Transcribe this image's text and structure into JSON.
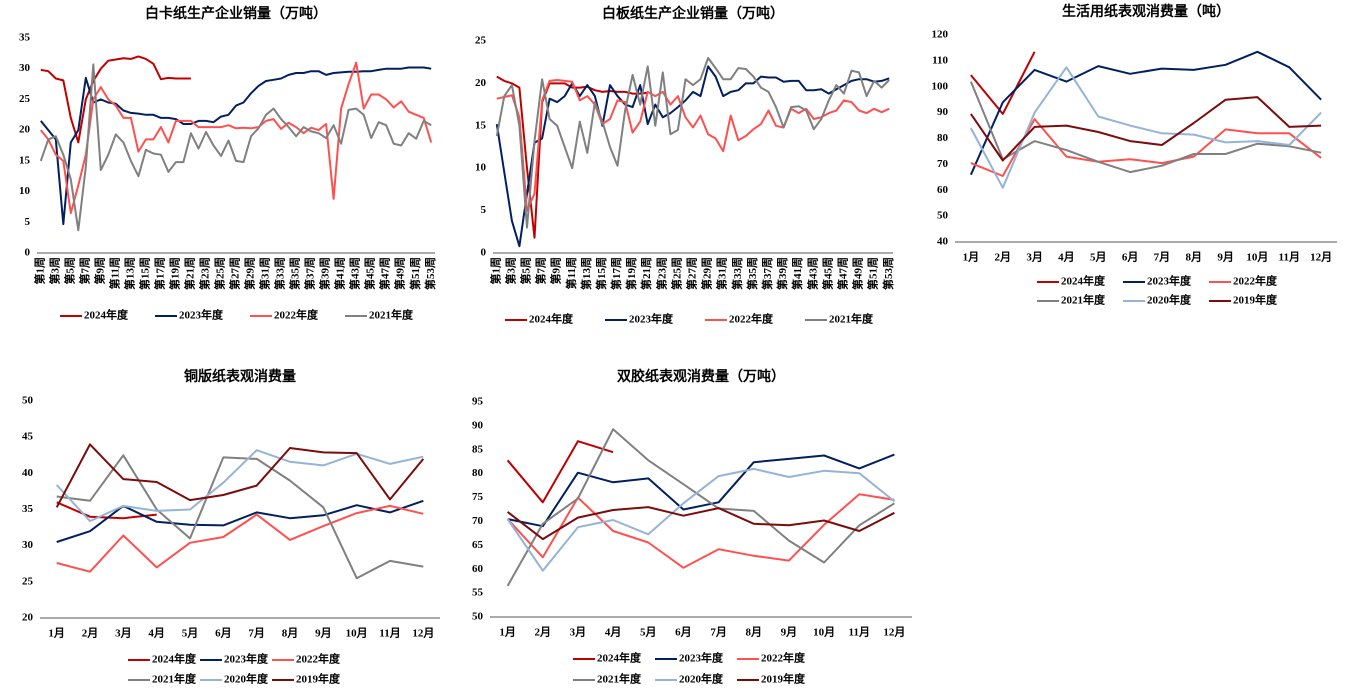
{
  "chart_data": [
    {
      "type": "line",
      "title": "白卡纸生产企业销量（万吨）",
      "categories": [
        "第1周",
        null,
        "第3周",
        null,
        "第5周",
        null,
        "第7周",
        null,
        "第9周",
        null,
        "第11周",
        null,
        "第13周",
        null,
        "第15周",
        null,
        "第17周",
        null,
        "第19周",
        null,
        "第21周",
        null,
        "第23周",
        null,
        "第25周",
        null,
        "第27周",
        null,
        "第29周",
        null,
        "第31周",
        null,
        "第33周",
        null,
        "第35周",
        null,
        "第37周",
        null,
        "第39周",
        null,
        "第41周",
        null,
        "第43周",
        null,
        "第45周",
        null,
        "第47周",
        null,
        "第49周",
        null,
        "第51周",
        null,
        "第53周"
      ],
      "ylim": [
        0,
        35
      ],
      "yticks": [
        0,
        5,
        10,
        15,
        20,
        25,
        30,
        35
      ],
      "series": [
        {
          "name": "2024年度",
          "color": "#c00000",
          "values": [
            29.8,
            29.6,
            28.4,
            28.1,
            22,
            18,
            25,
            28,
            30,
            31.3,
            31.5,
            31.7,
            31.6,
            32,
            31.6,
            30.8,
            28.3,
            28.5,
            28.4,
            28.4,
            28.4,
            null,
            null,
            null,
            null,
            null,
            null,
            null,
            null,
            null,
            null,
            null,
            null,
            null,
            null,
            null,
            null,
            null,
            null,
            null,
            null,
            null,
            null,
            null,
            null,
            null,
            null,
            null,
            null,
            null,
            null,
            null,
            null
          ]
        },
        {
          "name": "2023年度",
          "color": "#002060",
          "values": [
            21.5,
            20,
            18.5,
            4.7,
            18,
            20,
            28.5,
            24.5,
            25,
            24.5,
            24.3,
            23.2,
            22.8,
            22.7,
            22.5,
            22.5,
            22,
            22,
            21.8,
            21,
            21,
            21.5,
            21.5,
            21.3,
            22.2,
            22.5,
            24,
            24.5,
            26,
            27.2,
            28,
            28.2,
            28.4,
            29,
            29.3,
            29.3,
            29.6,
            29.6,
            29,
            29.3,
            29.4,
            29.5,
            29.5,
            29.6,
            29.6,
            29.8,
            30,
            30,
            30,
            30.2,
            30.2,
            30.2,
            30
          ]
        },
        {
          "name": "2022年度",
          "color": "#ff5050",
          "values": [
            20,
            18.5,
            16,
            15,
            6.5,
            11,
            16,
            25,
            27,
            25,
            24,
            22,
            22,
            16.5,
            18.5,
            18.5,
            20.5,
            18,
            21.5,
            21.5,
            21.5,
            20.5,
            20.5,
            20.5,
            20.5,
            20.8,
            20.3,
            20.4,
            20.3,
            20.5,
            21.5,
            21.8,
            20.2,
            21.2,
            20.5,
            19.5,
            20.4,
            20,
            21,
            8.8,
            23.5,
            27.5,
            31,
            23.5,
            25.8,
            25.8,
            25,
            23.7,
            24.7,
            23,
            22.5,
            22,
            18
          ]
        },
        {
          "name": "2021年度",
          "color": "#808080",
          "values": [
            15,
            18.5,
            19,
            16,
            12,
            3.7,
            14,
            30.7,
            13.5,
            16,
            19.3,
            18,
            15,
            12.5,
            16.8,
            16.2,
            16,
            13.2,
            14.8,
            14.8,
            19.5,
            17,
            19.7,
            17.5,
            15.8,
            18.3,
            15,
            14.8,
            19,
            20.3,
            22.5,
            23.5,
            21.8,
            20.5,
            19,
            20.5,
            19.8,
            19.5,
            18.7,
            20.8,
            17.8,
            23.3,
            23.5,
            22.5,
            18.7,
            21.3,
            20.8,
            17.8,
            17.5,
            19.5,
            18.6,
            21.5,
            20.8
          ]
        }
      ]
    },
    {
      "type": "line",
      "title": "白板纸生产企业销量（万吨）",
      "categories": [
        "第1周",
        null,
        "第3周",
        null,
        "第5周",
        null,
        "第7周",
        null,
        "第9周",
        null,
        "第11周",
        null,
        "第13周",
        null,
        "第15周",
        null,
        "第17周",
        null,
        "第19周",
        null,
        "第21周",
        null,
        "第23周",
        null,
        "第25周",
        null,
        "第27周",
        null,
        "第29周",
        null,
        "第31周",
        null,
        "第33周",
        null,
        "第35周",
        null,
        "第37周",
        null,
        "第39周",
        null,
        "第41周",
        null,
        "第43周",
        null,
        "第45周",
        null,
        "第47周",
        null,
        "第49周",
        null,
        "第51周",
        null,
        "第53周"
      ],
      "ylim": [
        0,
        25
      ],
      "yticks": [
        0,
        5,
        10,
        15,
        20,
        25
      ],
      "series": [
        {
          "name": "2024年度",
          "color": "#c00000",
          "values": [
            20.8,
            20.3,
            20,
            19.5,
            10,
            1.8,
            17.8,
            20,
            20,
            20,
            19.5,
            19.5,
            19.6,
            19.2,
            19,
            19.1,
            19,
            19,
            18.8,
            18.8,
            18.9,
            null,
            null,
            null,
            null,
            null,
            null,
            null,
            null,
            null,
            null,
            null,
            null,
            null,
            null,
            null,
            null,
            null,
            null,
            null,
            null,
            null,
            null,
            null,
            null,
            null,
            null,
            null,
            null,
            null,
            null,
            null,
            null
          ]
        },
        {
          "name": "2023年度",
          "color": "#002060",
          "values": [
            15.2,
            9.5,
            3.8,
            0.8,
            7,
            13,
            13.5,
            18.2,
            17.8,
            18.5,
            20,
            18.5,
            19.8,
            18.5,
            15,
            19.8,
            18.5,
            17.5,
            17.2,
            19.8,
            15.2,
            17.5,
            16,
            16.5,
            17.2,
            18,
            19,
            18.5,
            22,
            20.8,
            18.5,
            19,
            19.2,
            20,
            20,
            20.8,
            20.7,
            20.7,
            20.2,
            20.3,
            20.3,
            19.2,
            19.2,
            19.3,
            18.8,
            19.3,
            19.8,
            20.3,
            20.5,
            20.5,
            20.2,
            20.3,
            20.6
          ]
        },
        {
          "name": "2022年度",
          "color": "#ff5050",
          "values": [
            18.2,
            18.4,
            18.6,
            16,
            5,
            7,
            18,
            20.3,
            20.4,
            20.3,
            20.2,
            18,
            18.5,
            17.5,
            15.2,
            15.8,
            18,
            17.8,
            14.2,
            15.5,
            19,
            18.5,
            19,
            17.5,
            18.5,
            16,
            14.8,
            16.2,
            14,
            13.5,
            12,
            16.2,
            13.3,
            13.8,
            14.6,
            15.2,
            16.8,
            15,
            14.8,
            17,
            16.5,
            17,
            15.8,
            16,
            16.5,
            16.8,
            18,
            17.8,
            16.8,
            16.5,
            17,
            16.6,
            17
          ]
        },
        {
          "name": "2021年度",
          "color": "#808080",
          "values": [
            13.8,
            18.5,
            19.8,
            15,
            3,
            13.2,
            20.5,
            15.8,
            15,
            12.5,
            10,
            15.5,
            11.8,
            17.8,
            15.5,
            12.5,
            10.3,
            16.8,
            21,
            17.5,
            22,
            15,
            21.3,
            14,
            14.5,
            20.5,
            19.8,
            20.5,
            23,
            21.8,
            20.5,
            20.5,
            21.8,
            21.7,
            20.8,
            19.5,
            19,
            17.2,
            14.8,
            17.2,
            17.3,
            16.8,
            14.6,
            15.8,
            18,
            19.8,
            18.8,
            21.5,
            21.3,
            18.5,
            20.3,
            19.5,
            20.4
          ]
        }
      ]
    },
    {
      "type": "line",
      "title": "生活用纸表观消费量（吨）",
      "categories": [
        "1月",
        "2月",
        "3月",
        "4月",
        "5月",
        "6月",
        "7月",
        "8月",
        "9月",
        "10月",
        "11月",
        "12月"
      ],
      "ylim": [
        40,
        120
      ],
      "yticks": [
        40,
        50,
        60,
        70,
        80,
        90,
        100,
        110,
        120
      ],
      "series": [
        {
          "name": "2024年度",
          "color": "#c00000",
          "values": [
            104.5,
            89.5,
            113.5,
            null,
            null,
            null,
            null,
            null,
            null,
            null,
            null,
            null
          ]
        },
        {
          "name": "2023年度",
          "color": "#002060",
          "values": [
            66,
            94,
            106.5,
            102,
            108,
            105,
            107,
            106.5,
            108.5,
            113.5,
            107.5,
            95
          ]
        },
        {
          "name": "2022年度",
          "color": "#ff5050",
          "values": [
            70.5,
            65.5,
            87.5,
            73,
            71,
            72,
            70.5,
            73,
            83.5,
            82,
            82,
            72.5
          ]
        },
        {
          "name": "2021年度",
          "color": "#808080",
          "values": [
            102,
            72,
            79,
            75.5,
            71,
            67,
            69.5,
            74,
            74,
            78,
            77,
            74.5
          ]
        },
        {
          "name": "2020年度",
          "color": "#95b3d7",
          "values": [
            84,
            61,
            90,
            107.5,
            88.5,
            85,
            82,
            81.5,
            78.5,
            79,
            77.5,
            90
          ]
        },
        {
          "name": "2019年度",
          "color": "#7b0c0c",
          "values": [
            89.5,
            71.5,
            84.5,
            85,
            82.5,
            79,
            77.5,
            86,
            95,
            96,
            84.5,
            85
          ]
        }
      ]
    },
    {
      "type": "line",
      "title": "铜版纸表观消费量",
      "categories": [
        "1月",
        "2月",
        "3月",
        "4月",
        "5月",
        "6月",
        "7月",
        "8月",
        "9月",
        "10月",
        "11月",
        "12月"
      ],
      "ylim": [
        20,
        50
      ],
      "yticks": [
        20,
        25,
        30,
        35,
        40,
        45,
        50
      ],
      "series": [
        {
          "name": "2024年度",
          "color": "#c00000",
          "values": [
            36,
            34,
            33.8,
            34.3,
            null,
            null,
            null,
            null,
            null,
            null,
            null,
            null
          ]
        },
        {
          "name": "2023年度",
          "color": "#002060",
          "values": [
            30.5,
            32,
            35.5,
            33.3,
            32.9,
            32.8,
            34.6,
            33.8,
            34.2,
            35.6,
            34.6,
            36.2
          ]
        },
        {
          "name": "2022年度",
          "color": "#ff5050",
          "values": [
            27.6,
            26.4,
            31.4,
            27,
            30.4,
            31.2,
            34.3,
            30.8,
            32.7,
            34.5,
            35.5,
            34.4
          ]
        },
        {
          "name": "2021年度",
          "color": "#808080",
          "values": [
            36.8,
            36.2,
            42.5,
            35,
            31,
            42.2,
            42,
            39,
            35.3,
            25.5,
            27.9,
            27.1
          ]
        },
        {
          "name": "2020年度",
          "color": "#95b3d7",
          "values": [
            38.4,
            33.4,
            35.5,
            34.8,
            35,
            38.7,
            43.2,
            41.6,
            41.1,
            42.7,
            41.3,
            42.3
          ]
        },
        {
          "name": "2019年度",
          "color": "#7b0c0c",
          "values": [
            35.3,
            44,
            39.2,
            38.8,
            36.3,
            37,
            38.3,
            43.5,
            42.9,
            42.8,
            36.4,
            42
          ]
        }
      ]
    },
    {
      "type": "line",
      "title": "双胶纸表观消费量（万吨）",
      "categories": [
        "1月",
        "2月",
        "3月",
        "4月",
        "5月",
        "6月",
        "7月",
        "8月",
        "9月",
        "10月",
        "11月",
        "12月"
      ],
      "ylim": [
        50,
        95
      ],
      "yticks": [
        50,
        55,
        60,
        65,
        70,
        75,
        80,
        85,
        90,
        95
      ],
      "series": [
        {
          "name": "2024年度",
          "color": "#c00000",
          "values": [
            82.8,
            74,
            86.8,
            84.5,
            null,
            null,
            null,
            null,
            null,
            null,
            null,
            null
          ]
        },
        {
          "name": "2023年度",
          "color": "#002060",
          "values": [
            70.5,
            69,
            80.2,
            78.2,
            79,
            72.5,
            74,
            82.4,
            83.1,
            83.8,
            81.1,
            84
          ]
        },
        {
          "name": "2022年度",
          "color": "#ff5050",
          "values": [
            70.5,
            62.5,
            75,
            68,
            65.6,
            60.3,
            64.2,
            62.8,
            61.8,
            69.3,
            75.7,
            74.5
          ]
        },
        {
          "name": "2021年度",
          "color": "#808080",
          "values": [
            56.5,
            69.5,
            74.8,
            89.3,
            82.8,
            77.8,
            72.7,
            72.2,
            66,
            61.4,
            69.2,
            73.8
          ]
        },
        {
          "name": "2020年度",
          "color": "#95b3d7",
          "values": [
            70.5,
            59.7,
            68.8,
            70.3,
            67.3,
            73.8,
            79.5,
            81,
            79.3,
            80.6,
            80.1,
            74.2
          ]
        },
        {
          "name": "2019年度",
          "color": "#7b0c0c",
          "values": [
            72,
            66.3,
            70.8,
            72.4,
            73,
            71.2,
            72.8,
            69.5,
            69.2,
            70.2,
            68,
            71.8
          ]
        }
      ]
    }
  ]
}
